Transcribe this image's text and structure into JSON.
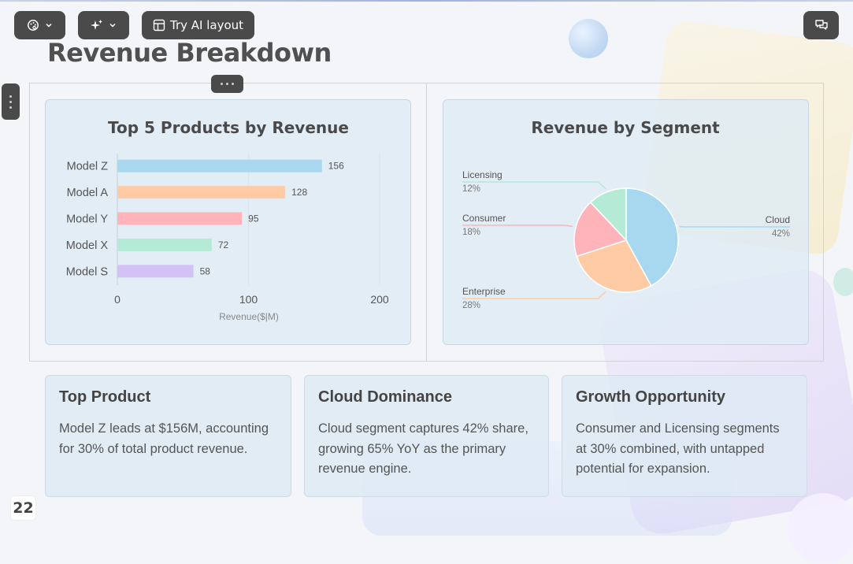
{
  "toolbar": {
    "layout_label": "Try AI layout"
  },
  "page": {
    "title": "Revenue Breakdown",
    "page_number": "22"
  },
  "chart_data": [
    {
      "type": "bar",
      "orientation": "horizontal",
      "title": "Top 5 Products by Revenue",
      "categories": [
        "Model Z",
        "Model A",
        "Model Y",
        "Model X",
        "Model S"
      ],
      "values": [
        156,
        128,
        95,
        72,
        58
      ],
      "colors": [
        "#a8d8f0",
        "#ffcba4",
        "#ffb3ba",
        "#b5ead7",
        "#d4c1f5"
      ],
      "xlabel": "Revenue($|M)",
      "ylabel": "",
      "xlim": [
        0,
        200
      ],
      "xticks": [
        0,
        100,
        200
      ],
      "grid": true
    },
    {
      "type": "pie",
      "title": "Revenue by Segment",
      "labels": [
        "Cloud",
        "Enterprise",
        "Consumer",
        "Licensing"
      ],
      "values": [
        42,
        28,
        18,
        12
      ],
      "value_labels": [
        "42%",
        "28%",
        "18%",
        "12%"
      ],
      "colors": [
        "#a8d8f0",
        "#ffcba4",
        "#ffb3ba",
        "#b5ead7"
      ]
    }
  ],
  "cards": [
    {
      "title": "Top Product",
      "body": "Model Z leads at $156M, accounting for 30% of total product revenue."
    },
    {
      "title": "Cloud Dominance",
      "body": "Cloud segment captures 42% share, growing 65% YoY as the primary revenue engine."
    },
    {
      "title": "Growth Opportunity",
      "body": "Consumer and Licensing segments at 30% combined, with untapped potential for expansion."
    }
  ],
  "icons": {
    "theme": "palette-icon",
    "ai": "sparkle-icon",
    "layout": "layout-icon",
    "chat": "chat-icon"
  }
}
